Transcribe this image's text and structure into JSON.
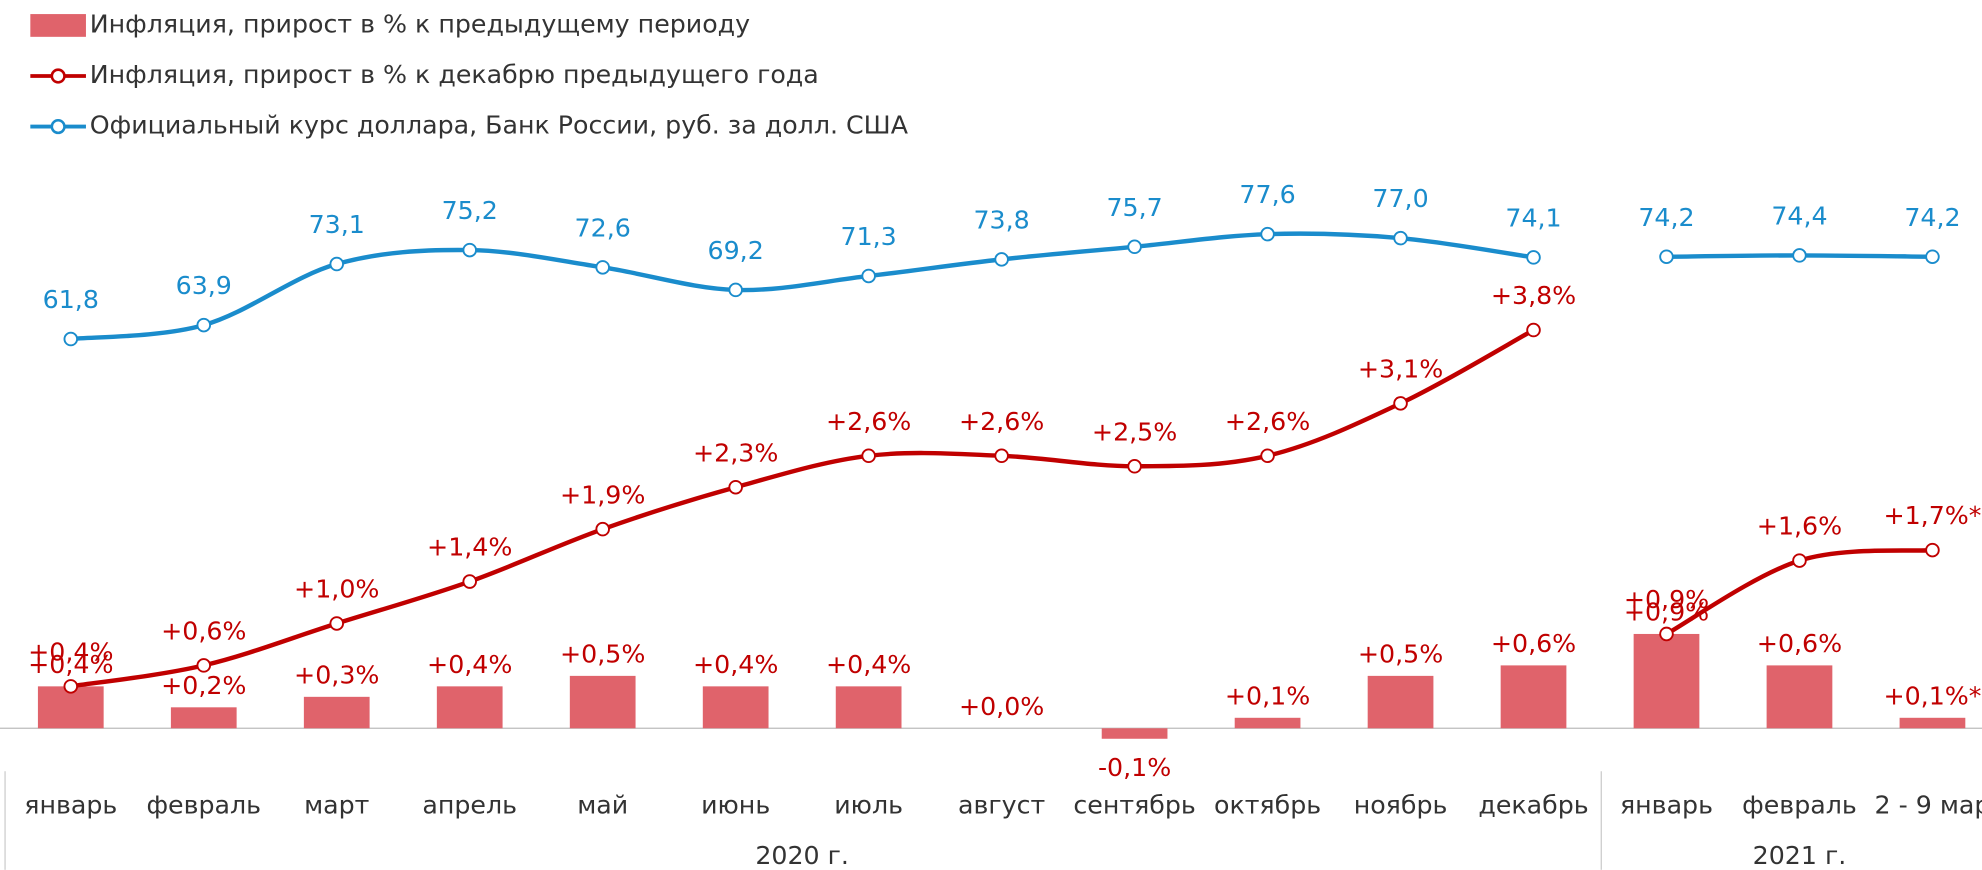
{
  "chart_data": {
    "type": "bar",
    "groups": [
      {
        "label": "2020 г.",
        "categories": [
          "январь",
          "февраль",
          "март",
          "апрель",
          "май",
          "июнь",
          "июль",
          "август",
          "сентябрь",
          "октябрь",
          "ноябрь",
          "декабрь"
        ]
      },
      {
        "label": "2021 г.",
        "categories": [
          "январь",
          "февраль",
          "2 - 9 мар"
        ]
      }
    ],
    "series": [
      {
        "name": "Инфляция, прирост в % к предыдущему периоду",
        "type": "bar",
        "color": "#e0636b",
        "values": [
          [
            0.4,
            0.2,
            0.3,
            0.4,
            0.5,
            0.4,
            0.4,
            0.0,
            -0.1,
            0.1,
            0.5,
            0.6
          ],
          [
            0.9,
            0.6,
            0.1
          ]
        ],
        "value_labels": [
          [
            "+0,4%",
            "+0,2%",
            "+0,3%",
            "+0,4%",
            "+0,5%",
            "+0,4%",
            "+0,4%",
            "+0,0%",
            "-0,1%",
            "+0,1%",
            "+0,5%",
            "+0,6%"
          ],
          [
            "+0,9%",
            "+0,6%",
            "+0,1%*"
          ]
        ]
      },
      {
        "name": "Инфляция, прирост в % к декабрю предыдущего года",
        "type": "line",
        "color": "#c00000",
        "values": [
          [
            0.4,
            0.6,
            1.0,
            1.4,
            1.9,
            2.3,
            2.6,
            2.6,
            2.5,
            2.6,
            3.1,
            3.8
          ],
          [
            0.9,
            1.6,
            1.7
          ]
        ],
        "value_labels": [
          [
            "+0,4%",
            "+0,6%",
            "+1,0%",
            "+1,4%",
            "+1,9%",
            "+2,3%",
            "+2,6%",
            "+2,6%",
            "+2,5%",
            "+2,6%",
            "+3,1%",
            "+3,8%"
          ],
          [
            "+0,9%",
            "+1,6%",
            "+1,7%*"
          ]
        ]
      },
      {
        "name": "Официальный курс доллара, Банк России, руб. за долл. США",
        "type": "line",
        "axis": "y2",
        "color": "#1a8ccc",
        "values": [
          [
            61.8,
            63.9,
            73.1,
            75.2,
            72.6,
            69.2,
            71.3,
            73.8,
            75.7,
            77.6,
            77.0,
            74.1
          ],
          [
            74.2,
            74.4,
            74.2
          ]
        ],
        "value_labels": [
          [
            "61,8",
            "63,9",
            "73,1",
            "75,2",
            "72,6",
            "69,2",
            "71,3",
            "73,8",
            "75,7",
            "77,6",
            "77,0",
            "74,1"
          ],
          [
            "74,2",
            "74,4",
            "74,2"
          ]
        ]
      }
    ],
    "ylim": [
      -0.2,
      5.5
    ],
    "y2lim": [
      0,
      90
    ]
  }
}
